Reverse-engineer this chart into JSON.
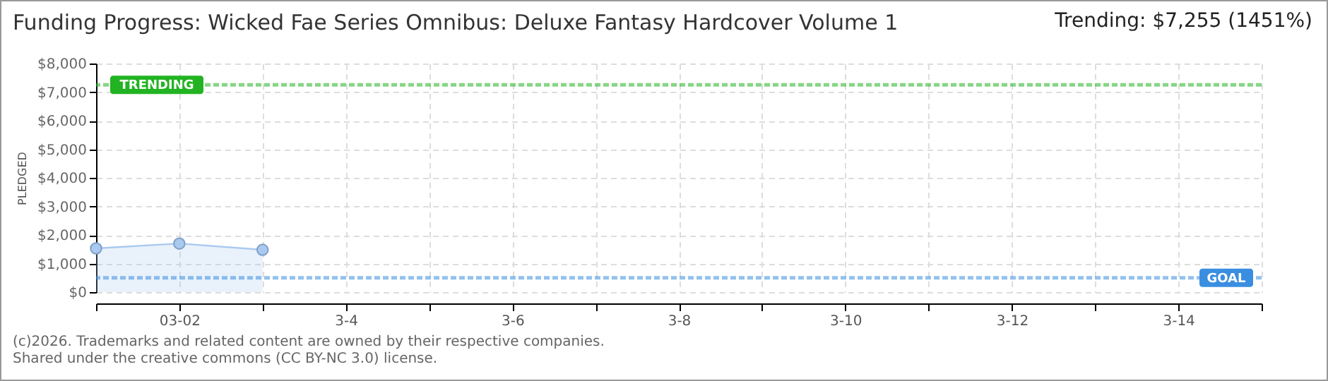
{
  "chart_data": {
    "type": "area",
    "title": "Funding Progress: Wicked Fae Series Omnibus: Deluxe Fantasy Hardcover Volume 1",
    "subtitle": "Trending:  $7,255 (1451%)",
    "ylabel": "PLEDGED",
    "x": [
      "--03-01",
      "--03-02",
      "--03-03"
    ],
    "series": [
      {
        "color": "#a9c9ef",
        "values": [
          1530,
          1700,
          1480
        ]
      }
    ],
    "xlim": [
      "--03-01",
      "--03-15"
    ],
    "xticks": [
      {
        "value": "--03-01",
        "label": null
      },
      {
        "value": "--03-02",
        "label": "03-02"
      },
      {
        "value": "--03-03",
        "label": null
      },
      {
        "value": "--03-04",
        "label": "3-4"
      },
      {
        "value": "--03-05",
        "label": null
      },
      {
        "value": "--03-06",
        "label": "3-6"
      },
      {
        "value": "--03-07",
        "label": null
      },
      {
        "value": "--03-08",
        "label": "3-8"
      },
      {
        "value": "--03-09",
        "label": null
      },
      {
        "value": "--03-10",
        "label": "3-10"
      },
      {
        "value": "--03-11",
        "label": null
      },
      {
        "value": "--03-12",
        "label": "3-12"
      },
      {
        "value": "--03-13",
        "label": null
      },
      {
        "value": "--03-14",
        "label": "3-14"
      },
      {
        "value": "--03-15",
        "label": null
      }
    ],
    "ylim": [
      0,
      8000
    ],
    "yticks": [
      {
        "value": 0,
        "label": "$0"
      },
      {
        "value": 1000,
        "label": "$1,000"
      },
      {
        "value": 2000,
        "label": "$2,000"
      },
      {
        "value": 3000,
        "label": "$3,000"
      },
      {
        "value": 4000,
        "label": "$4,000"
      },
      {
        "value": 5000,
        "label": "$5,000"
      },
      {
        "value": 6000,
        "label": "$6,000"
      },
      {
        "value": 7000,
        "label": "$7,000"
      },
      {
        "value": 8000,
        "label": "$8,000"
      }
    ],
    "ref_lines": [
      {
        "axis": "y",
        "value": 7255,
        "label": "TRENDING",
        "color": "#22b322",
        "line_style": "dashed"
      },
      {
        "axis": "y",
        "value": 500,
        "label": "GOAL",
        "color": "#3a8ee0",
        "line_style": "dashed"
      }
    ],
    "grid": true,
    "marker": "circle",
    "annotations": [
      "(c)2026. Trademarks and related content are owned by their respective companies.",
      "Shared under the creative commons (CC BY-NC 3.0) license."
    ]
  }
}
